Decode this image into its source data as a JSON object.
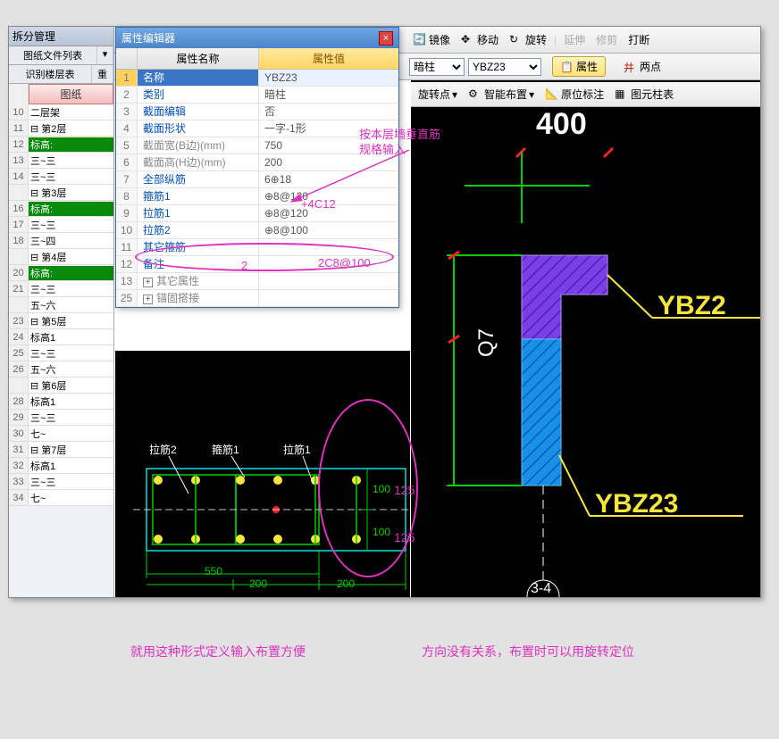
{
  "left_panel": {
    "header": "拆分管理",
    "tabs": [
      "图纸文件列表",
      " "
    ],
    "tabs2": [
      "识别楼层表",
      "重"
    ],
    "col_header": "图纸",
    "rows": [
      {
        "n": "10",
        "label": "  二层架",
        "green": false
      },
      {
        "n": "11",
        "label": "⊟ 第2层",
        "green": false
      },
      {
        "n": "12",
        "label": "  标高:",
        "green": true,
        "yellow": true
      },
      {
        "n": "13",
        "label": "  三~三",
        "green": false
      },
      {
        "n": "14",
        "label": "  三~三",
        "green": false
      },
      {
        "n": "",
        "label": "⊟ 第3层",
        "green": false
      },
      {
        "n": "16",
        "label": "  标高:",
        "green": true
      },
      {
        "n": "17",
        "label": "  三~三",
        "green": false
      },
      {
        "n": "18",
        "label": "  三~四",
        "green": false
      },
      {
        "n": "",
        "label": "⊟ 第4层",
        "green": false
      },
      {
        "n": "20",
        "label": "  标高:",
        "green": true
      },
      {
        "n": "21",
        "label": "  三~三",
        "green": false
      },
      {
        "n": "",
        "label": "  五~六",
        "green": false
      },
      {
        "n": "23",
        "label": "⊟ 第5层",
        "green": false
      },
      {
        "n": "24",
        "label": "  标高1",
        "green": false
      },
      {
        "n": "25",
        "label": "  三~三",
        "green": false
      },
      {
        "n": "26",
        "label": "  五~六",
        "green": false
      },
      {
        "n": "",
        "label": "⊟ 第6层",
        "green": false
      },
      {
        "n": "28",
        "label": "  标高1",
        "green": false
      },
      {
        "n": "29",
        "label": "  三~三",
        "green": false
      },
      {
        "n": "30",
        "label": "  七~",
        "green": false
      },
      {
        "n": "31",
        "label": "⊟ 第7层",
        "green": false
      },
      {
        "n": "32",
        "label": "  标高1",
        "green": false
      },
      {
        "n": "33",
        "label": "  三~三",
        "green": false
      },
      {
        "n": "34",
        "label": "  七~",
        "green": false
      }
    ]
  },
  "prop_editor": {
    "title": "属性编辑器",
    "head_name": "属性名称",
    "head_value": "属性值",
    "rows": [
      {
        "n": "1",
        "name": "名称",
        "val": "YBZ23",
        "blue": true,
        "sel": true
      },
      {
        "n": "2",
        "name": "类别",
        "val": "暗柱",
        "blue": true
      },
      {
        "n": "3",
        "name": "截面编辑",
        "val": "否",
        "blue": true
      },
      {
        "n": "4",
        "name": "截面形状",
        "val": "一字-1形",
        "blue": true
      },
      {
        "n": "5",
        "name": "截面宽(B边)(mm)",
        "val": "750",
        "blue": false
      },
      {
        "n": "6",
        "name": "截面高(H边)(mm)",
        "val": "200",
        "blue": false
      },
      {
        "n": "7",
        "name": "全部纵筋",
        "val": "6⊕18",
        "blue": true
      },
      {
        "n": "8",
        "name": "箍筋1",
        "val": "⊕8@120",
        "blue": true
      },
      {
        "n": "9",
        "name": "拉筋1",
        "val": "⊕8@120",
        "blue": true
      },
      {
        "n": "10",
        "name": "拉筋2",
        "val": "⊕8@100",
        "blue": true
      },
      {
        "n": "11",
        "name": "其它箍筋",
        "val": "",
        "blue": true
      },
      {
        "n": "12",
        "name": "备注",
        "val": "",
        "blue": true
      },
      {
        "n": "13",
        "name": "其它属性",
        "val": "",
        "blue": false,
        "plus": true
      },
      {
        "n": "25",
        "name": "锚固搭接",
        "val": "",
        "blue": false,
        "plus": true
      }
    ]
  },
  "toolbar": {
    "mirror": "镜像",
    "move": "移动",
    "rotate": "旋转",
    "extend": "延伸",
    "trim": "修剪",
    "break": "打断",
    "sel1": "暗柱",
    "sel2": "YBZ23",
    "prop_btn": "属性",
    "twop": "两点",
    "rotpt": "旋转点",
    "smart": "智能布置",
    "orig": "原位标注",
    "elem": "图元柱表"
  },
  "annotations": {
    "l1": "按本层墙垂直筋",
    "l2": "规格输入",
    "plus": "+4C12",
    "code": "2C8@100",
    "two": "2",
    "d125": "125",
    "b1": "就用这种形式定义输入布置方便",
    "b2": "方向没有关系，布置时可以用旋转定位"
  },
  "diagram_bottom": {
    "labels": {
      "lajin2": "拉筋2",
      "gujin1": "箍筋1",
      "lajin1": "拉筋1"
    },
    "dim_550": "550",
    "dim_200": "200",
    "dim_100": "100",
    "colors": {
      "rebar": "#f5e63c",
      "box": "#00e0e0",
      "green": "#00d000",
      "red": "#ff2020",
      "white": "#ffffff"
    }
  },
  "diagram_right": {
    "label_400": "400",
    "label_q7": "Q7",
    "label_ybz2": "YBZ2",
    "label_ybz23": "YBZ23",
    "label_34": "3-4",
    "colors": {
      "purple": "#7a3fe8",
      "blue": "#1a8fe8",
      "yellow": "#f5e63c",
      "green": "#00d000",
      "red": "#ff2020",
      "white": "#ffffff"
    }
  }
}
